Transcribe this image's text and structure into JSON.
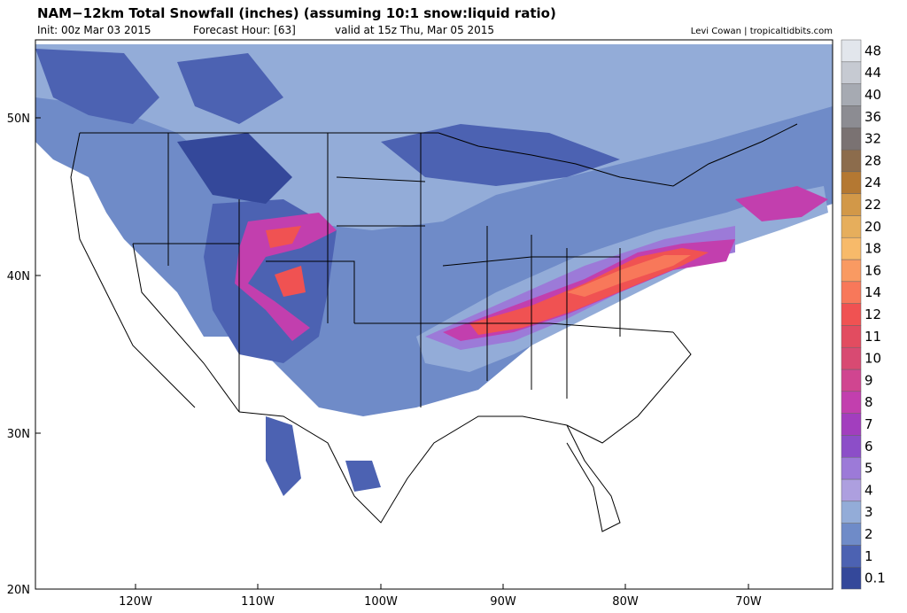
{
  "header": {
    "title": "NAM−12km Total Snowfall (inches) (assuming 10:1 snow:liquid ratio)",
    "init": "Init: 00z Mar 03 2015",
    "forecast_hour": "Forecast Hour: [63]",
    "valid": "valid at 15z Thu, Mar 05 2015",
    "credit": "Levi Cowan | tropicaltidbits.com"
  },
  "map": {
    "lat_labels": [
      "50N",
      "40N",
      "30N",
      "20N"
    ],
    "lon_labels": [
      "120W",
      "110W",
      "100W",
      "90W",
      "80W",
      "70W"
    ]
  },
  "colorbar": {
    "levels": [
      {
        "label": "0.1",
        "color": "#34489a"
      },
      {
        "label": "1",
        "color": "#4c62b2"
      },
      {
        "label": "2",
        "color": "#6f8bc8"
      },
      {
        "label": "3",
        "color": "#93acd8"
      },
      {
        "label": "4",
        "color": "#ad9fdf"
      },
      {
        "label": "5",
        "color": "#9c7ad8"
      },
      {
        "label": "6",
        "color": "#8c4ec8"
      },
      {
        "label": "7",
        "color": "#a23ebe"
      },
      {
        "label": "8",
        "color": "#c23fae"
      },
      {
        "label": "9",
        "color": "#d04590"
      },
      {
        "label": "10",
        "color": "#d84a72"
      },
      {
        "label": "11",
        "color": "#e24c60"
      },
      {
        "label": "12",
        "color": "#f05252"
      },
      {
        "label": "14",
        "color": "#f8785a"
      },
      {
        "label": "16",
        "color": "#f99a62"
      },
      {
        "label": "18",
        "color": "#f7ba6a"
      },
      {
        "label": "20",
        "color": "#e6ae5c"
      },
      {
        "label": "22",
        "color": "#d29848"
      },
      {
        "label": "24",
        "color": "#b47832"
      },
      {
        "label": "28",
        "color": "#8c6c4c"
      },
      {
        "label": "32",
        "color": "#7a7272"
      },
      {
        "label": "36",
        "color": "#8c8c92"
      },
      {
        "label": "40",
        "color": "#a6aab2"
      },
      {
        "label": "44",
        "color": "#c6cad2"
      },
      {
        "label": "48",
        "color": "#e2e6ec"
      }
    ]
  }
}
